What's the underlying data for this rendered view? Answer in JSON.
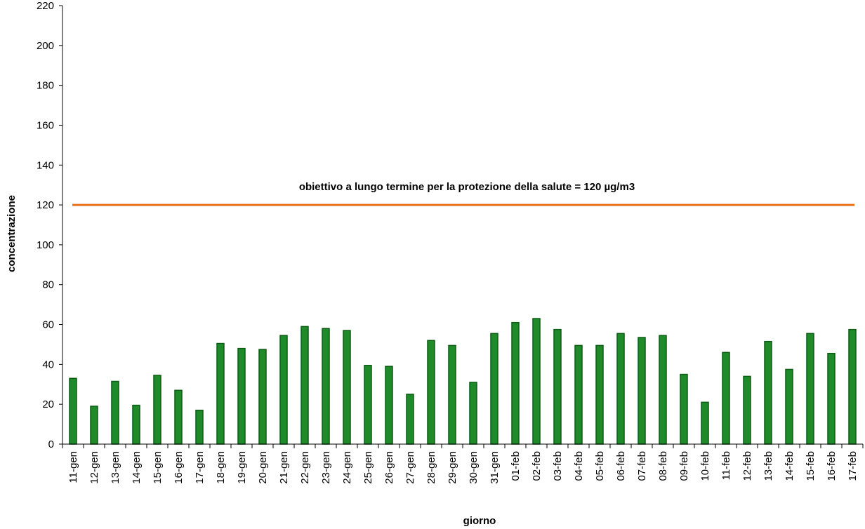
{
  "chart_data": {
    "type": "bar",
    "title": "",
    "xlabel": "giorno",
    "ylabel": "concentrazione",
    "ylim": [
      0,
      220
    ],
    "yticks": [
      0,
      20,
      40,
      60,
      80,
      100,
      120,
      140,
      160,
      180,
      200,
      220
    ],
    "grid": false,
    "legend": "none",
    "categories": [
      "11-gen",
      "12-gen",
      "13-gen",
      "14-gen",
      "15-gen",
      "16-gen",
      "17-gen",
      "18-gen",
      "19-gen",
      "20-gen",
      "21-gen",
      "22-gen",
      "23-gen",
      "24-gen",
      "25-gen",
      "26-gen",
      "27-gen",
      "28-gen",
      "29-gen",
      "30-gen",
      "31-gen",
      "01-feb",
      "02-feb",
      "03-feb",
      "04-feb",
      "05-feb",
      "06-feb",
      "07-feb",
      "08-feb",
      "09-feb",
      "10-feb",
      "11-feb",
      "12-feb",
      "13-feb",
      "14-feb",
      "15-feb",
      "16-feb",
      "17-feb"
    ],
    "values": [
      33,
      19,
      31.5,
      19.5,
      34.5,
      27,
      17,
      50.5,
      48,
      47.5,
      54.5,
      59,
      58,
      57,
      39.5,
      39,
      25,
      52,
      49.5,
      31,
      55.5,
      61,
      63,
      57.5,
      49.5,
      49.5,
      55.5,
      53.5,
      54.5,
      35,
      21,
      46,
      34,
      51.5,
      37.5,
      55.5,
      45.5,
      57.5
    ],
    "reference_line": {
      "value": 120,
      "label": "obiettivo a lungo termine per la protezione della salute = 120 µg/m3",
      "color": "#e8701a"
    },
    "colors": {
      "bar_fill": "#1f8a2a",
      "bar_stroke": "#0d5c14",
      "axis": "#000000"
    }
  }
}
